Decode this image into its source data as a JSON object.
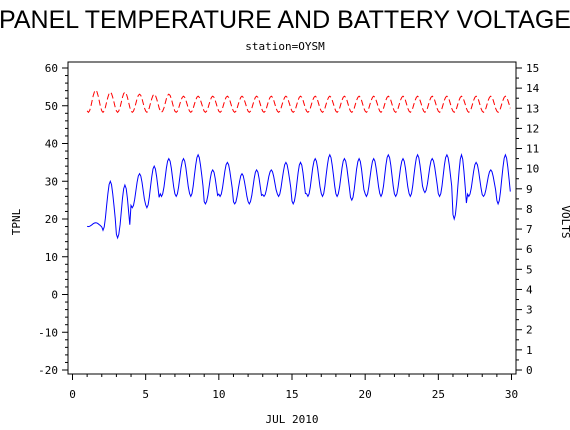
{
  "chart_data": {
    "type": "line",
    "title": "PANEL TEMPERATURE AND BATTERY VOLTAGE",
    "subtitle": "station=OYSM",
    "xlabel": "JUL 2010",
    "ylabel_left": "TPNL",
    "ylabel_right": "VOLTS",
    "xlim": [
      0,
      30
    ],
    "ylim_left": [
      -20,
      60
    ],
    "ylim_right": [
      0,
      15
    ],
    "x_ticks": [
      0,
      5,
      10,
      15,
      20,
      25,
      30
    ],
    "y_ticks_left": [
      -20,
      -10,
      0,
      10,
      20,
      30,
      40,
      50,
      60
    ],
    "y_ticks_right": [
      0,
      1,
      2,
      3,
      4,
      5,
      6,
      7,
      8,
      9,
      10,
      11,
      12,
      13,
      14,
      15
    ],
    "grid": false,
    "series": [
      {
        "axis": "left",
        "color": "#0000ff",
        "style": "solid",
        "daily_min": [
          18,
          17,
          15,
          23,
          23,
          26,
          26,
          26,
          24,
          26,
          24,
          24,
          26,
          26,
          24,
          26,
          26,
          26,
          25,
          26,
          26,
          26,
          26,
          27,
          26,
          20,
          26,
          26,
          24
        ],
        "daily_max": [
          19,
          30,
          29,
          32,
          34,
          36,
          36,
          37,
          33,
          35,
          32,
          33,
          33,
          35,
          35,
          36,
          37,
          36,
          36,
          36,
          37,
          36,
          37,
          36,
          37,
          37,
          35,
          33,
          37
        ]
      },
      {
        "axis": "right",
        "color": "#ff0000",
        "style": "dashed",
        "daily_min": [
          12.8,
          12.8,
          12.8,
          12.8,
          12.8,
          12.8,
          12.8,
          12.8,
          12.8,
          12.8,
          12.8,
          12.8,
          12.8,
          12.8,
          12.8,
          12.8,
          12.8,
          12.8,
          12.8,
          12.8,
          12.8,
          12.8,
          12.8,
          12.8,
          12.8,
          12.8,
          12.8,
          12.8,
          12.8
        ],
        "daily_max": [
          13.9,
          13.8,
          13.8,
          13.7,
          13.7,
          13.7,
          13.6,
          13.6,
          13.6,
          13.6,
          13.6,
          13.6,
          13.6,
          13.6,
          13.6,
          13.6,
          13.6,
          13.6,
          13.6,
          13.6,
          13.6,
          13.6,
          13.6,
          13.6,
          13.6,
          13.6,
          13.6,
          13.6,
          13.6
        ]
      }
    ]
  }
}
